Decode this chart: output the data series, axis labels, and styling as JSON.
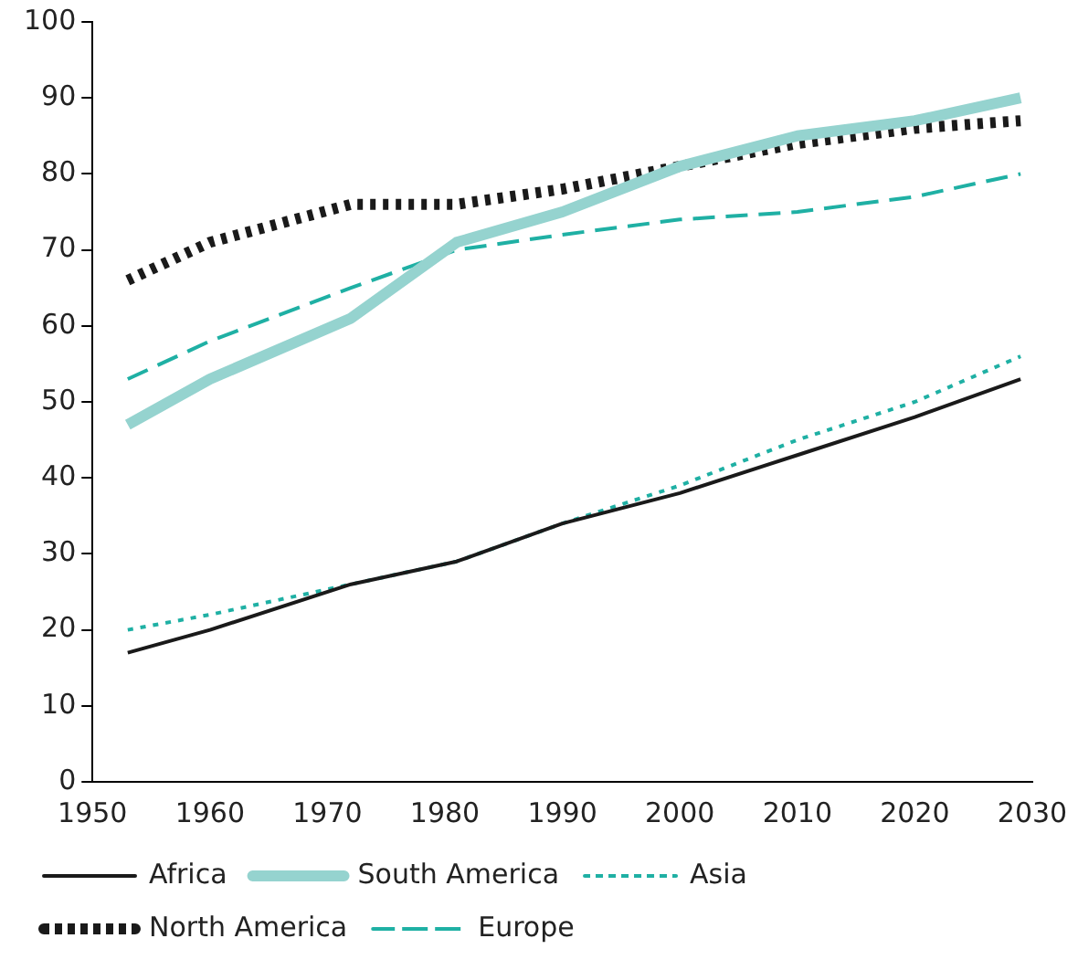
{
  "chart_data": {
    "type": "line",
    "xlim": [
      1950,
      2030
    ],
    "xticks": [
      1950,
      1960,
      1970,
      1980,
      1990,
      2000,
      2010,
      2020,
      2030
    ],
    "ylim": [
      0,
      100
    ],
    "yticks": [
      0,
      10,
      20,
      30,
      40,
      50,
      60,
      70,
      80,
      90,
      100
    ],
    "grid": false,
    "legend": "bottom",
    "marker": "none",
    "x": [
      1953,
      1960,
      1972,
      1981,
      1990,
      2000,
      2010,
      2020,
      2029
    ],
    "series": [
      {
        "name": "Africa",
        "color": "#1a1a1a",
        "line_style": "solid",
        "values": [
          17,
          20,
          26,
          29,
          34,
          38,
          43,
          48,
          53
        ]
      },
      {
        "name": "South America",
        "color": "#95d3cf",
        "line_style": "solid",
        "values": [
          47,
          53,
          61,
          71,
          75,
          81,
          85,
          87,
          90
        ]
      },
      {
        "name": "Asia",
        "color": "#1fb0a4",
        "line_style": "dotted",
        "values": [
          20,
          22,
          26,
          29,
          34,
          39,
          45,
          50,
          56
        ]
      },
      {
        "name": "North America",
        "color": "#1a1a1a",
        "line_style": "dotted",
        "values": [
          66,
          71,
          76,
          76,
          78,
          81,
          84,
          86,
          87
        ]
      },
      {
        "name": "Europe",
        "color": "#1fb0a4",
        "line_style": "dashed",
        "values": [
          53,
          58,
          65,
          70,
          72,
          74,
          75,
          77,
          80
        ]
      }
    ]
  }
}
